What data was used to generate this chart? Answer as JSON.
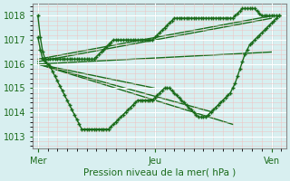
{
  "bg_color": "#d8eff0",
  "grid_color": "#ffffff",
  "line_color": "#1a6b1a",
  "marker_color": "#1a6b1a",
  "xlabel": "Pression niveau de la mer( hPa )",
  "xtick_labels": [
    "Mer",
    "Jeu",
    "Ven"
  ],
  "xtick_positions": [
    0,
    48,
    96
  ],
  "ylim": [
    1012.5,
    1018.5
  ],
  "ytick_vals": [
    1013,
    1014,
    1015,
    1016,
    1017,
    1018
  ],
  "total_points": 120,
  "vline_positions": [
    0,
    48,
    96
  ],
  "line1": [
    1018.0,
    1017.1,
    1016.5,
    1016.2,
    1016.2,
    1016.2,
    1016.2,
    1016.2,
    1016.2,
    1016.2,
    1016.2,
    1016.2,
    1016.2,
    1016.2,
    1016.2,
    1016.2,
    1016.2,
    1016.2,
    1016.2,
    1016.2,
    1016.2,
    1016.2,
    1016.2,
    1016.2,
    1016.3,
    1016.4,
    1016.5,
    1016.6,
    1016.7,
    1016.8,
    1016.9,
    1017.0,
    1017.0,
    1017.0,
    1017.0,
    1017.0,
    1017.0,
    1017.0,
    1017.0,
    1017.0,
    1017.0,
    1017.0,
    1017.0,
    1017.0,
    1017.0,
    1017.0,
    1017.0,
    1017.0,
    1017.1,
    1017.2,
    1017.3,
    1017.4,
    1017.5,
    1017.6,
    1017.7,
    1017.8,
    1017.9,
    1017.9,
    1017.9,
    1017.9,
    1017.9,
    1017.9,
    1017.9,
    1017.9,
    1017.9,
    1017.9,
    1017.9,
    1017.9,
    1017.9,
    1017.9,
    1017.9,
    1017.9,
    1017.9,
    1017.9,
    1017.9,
    1017.9,
    1017.9,
    1017.9,
    1017.9,
    1017.9,
    1017.9,
    1018.0,
    1018.1,
    1018.2,
    1018.3,
    1018.3,
    1018.3,
    1018.3,
    1018.3,
    1018.3,
    1018.2,
    1018.1,
    1018.0,
    1018.0,
    1018.0,
    1018.0,
    1018.0,
    1018.0,
    1018.0,
    1018.0
  ],
  "line2": [
    1017.1,
    1016.6,
    1016.2,
    1016.1,
    1016.0,
    1015.9,
    1015.7,
    1015.5,
    1015.3,
    1015.1,
    1014.9,
    1014.7,
    1014.5,
    1014.3,
    1014.1,
    1013.9,
    1013.7,
    1013.5,
    1013.3,
    1013.3,
    1013.3,
    1013.3,
    1013.3,
    1013.3,
    1013.3,
    1013.3,
    1013.3,
    1013.3,
    1013.3,
    1013.3,
    1013.4,
    1013.5,
    1013.6,
    1013.7,
    1013.8,
    1013.9,
    1014.0,
    1014.1,
    1014.2,
    1014.3,
    1014.4,
    1014.5,
    1014.5,
    1014.5,
    1014.5,
    1014.5,
    1014.5,
    1014.5,
    1014.6,
    1014.7,
    1014.8,
    1014.9,
    1015.0,
    1015.0,
    1015.0,
    1014.9,
    1014.8,
    1014.7,
    1014.6,
    1014.5,
    1014.4,
    1014.3,
    1014.2,
    1014.1,
    1014.0,
    1013.9,
    1013.8,
    1013.8,
    1013.8,
    1013.8,
    1013.9,
    1014.0,
    1014.1,
    1014.2,
    1014.3,
    1014.4,
    1014.5,
    1014.6,
    1014.7,
    1014.8,
    1015.0,
    1015.2,
    1015.5,
    1015.8,
    1016.1,
    1016.4,
    1016.6,
    1016.8,
    1016.9,
    1017.0,
    1017.1,
    1017.2,
    1017.3,
    1017.4,
    1017.5,
    1017.6,
    1017.7,
    1017.8,
    1017.9,
    1018.0
  ],
  "line3_x": [
    0,
    48
  ],
  "line3_y": [
    1016.2,
    1017.0
  ],
  "straight_lines": [
    {
      "x": [
        0,
        96
      ],
      "y": [
        1016.2,
        1018.0
      ]
    },
    {
      "x": [
        0,
        96
      ],
      "y": [
        1016.1,
        1017.9
      ]
    },
    {
      "x": [
        0,
        96
      ],
      "y": [
        1016.0,
        1016.5
      ]
    },
    {
      "x": [
        0,
        48
      ],
      "y": [
        1016.0,
        1015.0
      ]
    },
    {
      "x": [
        0,
        72
      ],
      "y": [
        1016.0,
        1014.0
      ]
    },
    {
      "x": [
        0,
        80
      ],
      "y": [
        1016.0,
        1013.5
      ]
    }
  ]
}
